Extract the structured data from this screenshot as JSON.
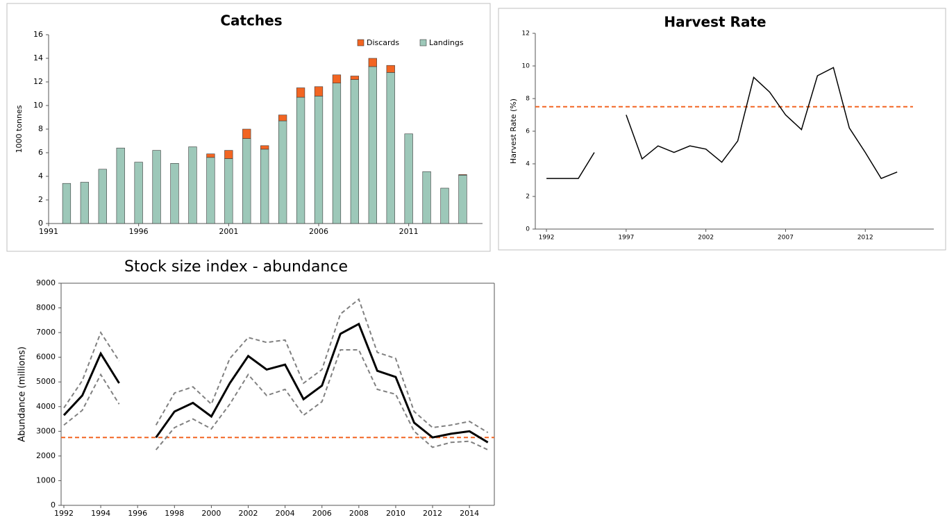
{
  "chart_data": [
    {
      "type": "bar",
      "title": "Catches",
      "ylabel": "1000 tonnes",
      "stacked": true,
      "legend": "upper right",
      "x": [
        1992,
        1993,
        1994,
        1995,
        1996,
        1997,
        1998,
        1999,
        2000,
        2001,
        2002,
        2003,
        2004,
        2005,
        2006,
        2007,
        2008,
        2009,
        2010,
        2011,
        2012,
        2013,
        2014
      ],
      "series": [
        {
          "name": "Landings",
          "color": "#9dc8b9",
          "values": [
            3.4,
            3.5,
            4.6,
            6.4,
            5.2,
            6.2,
            5.1,
            6.5,
            5.6,
            5.5,
            7.2,
            6.3,
            8.7,
            10.7,
            10.8,
            11.9,
            12.2,
            13.3,
            12.8,
            7.6,
            4.4,
            3.0,
            4.1
          ]
        },
        {
          "name": "Discards",
          "color": "#f26522",
          "values": [
            null,
            null,
            null,
            null,
            null,
            null,
            null,
            null,
            0.3,
            0.7,
            0.8,
            0.3,
            0.5,
            0.8,
            0.8,
            0.7,
            0.3,
            0.7,
            0.6,
            null,
            null,
            null,
            0.05
          ]
        }
      ],
      "xlim": [
        1991,
        2015.1
      ],
      "xticks": [
        1991,
        1996,
        2001,
        2006,
        2011
      ],
      "ylim": [
        0,
        16
      ],
      "yticks": [
        0,
        2,
        4,
        6,
        8,
        10,
        12,
        14,
        16
      ]
    },
    {
      "type": "line",
      "title": "Harvest Rate",
      "ylabel": "Harvest Rate (%)",
      "x": [
        1992,
        1993,
        1994,
        1995,
        1996,
        1997,
        1998,
        1999,
        2000,
        2001,
        2002,
        2003,
        2004,
        2005,
        2006,
        2007,
        2008,
        2009,
        2010,
        2011,
        2012,
        2013,
        2014
      ],
      "series": [
        {
          "color": "#000000",
          "values": [
            3.1,
            3.1,
            3.1,
            4.7,
            null,
            7.0,
            4.3,
            5.1,
            4.7,
            5.1,
            4.9,
            4.1,
            5.4,
            9.3,
            8.4,
            7.0,
            6.1,
            9.4,
            9.9,
            6.2,
            4.7,
            3.1,
            3.5
          ]
        }
      ],
      "reference_line": 7.5,
      "reference_color": "#f26522",
      "xlim": [
        1991.3,
        2016.3
      ],
      "xticks": [
        1992,
        1997,
        2002,
        2007,
        2012
      ],
      "ylim": [
        0,
        12
      ],
      "yticks": [
        0,
        2,
        4,
        6,
        8,
        10,
        12
      ]
    },
    {
      "type": "line",
      "title": "Stock size index - abundance",
      "ylabel": "Abundance (millions)",
      "x": [
        1992,
        1993,
        1994,
        1995,
        1996,
        1997,
        1998,
        1999,
        2000,
        2001,
        2002,
        2003,
        2004,
        2005,
        2006,
        2007,
        2008,
        2009,
        2010,
        2011,
        2012,
        2013,
        2014,
        2015
      ],
      "series": [
        {
          "color": "#000000",
          "values": [
            3650,
            4450,
            6150,
            4950,
            null,
            2750,
            3800,
            4150,
            3600,
            4950,
            6050,
            5500,
            5700,
            4300,
            4850,
            6950,
            7350,
            5450,
            5200,
            3350,
            2750,
            2900,
            3000,
            2550
          ]
        },
        {
          "color": "#808080",
          "style": "dashed",
          "values": [
            3950,
            5050,
            7000,
            5850,
            null,
            3250,
            4550,
            4800,
            4100,
            5950,
            6800,
            6600,
            6700,
            4950,
            5500,
            7750,
            8350,
            6200,
            5950,
            3800,
            3150,
            3250,
            3400,
            2950
          ]
        },
        {
          "color": "#808080",
          "style": "dashed",
          "values": [
            3250,
            3850,
            5300,
            4100,
            null,
            2250,
            3150,
            3500,
            3100,
            4100,
            5300,
            4450,
            4700,
            3650,
            4200,
            6300,
            6300,
            4700,
            4500,
            3000,
            2350,
            2550,
            2600,
            2250
          ]
        }
      ],
      "reference_line": 2750,
      "reference_color": "#f26522",
      "xlim": [
        1991.85,
        2015.35
      ],
      "xticks": [
        1992,
        1994,
        1996,
        1998,
        2000,
        2002,
        2004,
        2006,
        2008,
        2010,
        2012,
        2014
      ],
      "ylim": [
        0,
        9000
      ],
      "yticks": [
        0,
        1000,
        2000,
        3000,
        4000,
        5000,
        6000,
        7000,
        8000,
        9000
      ]
    }
  ]
}
